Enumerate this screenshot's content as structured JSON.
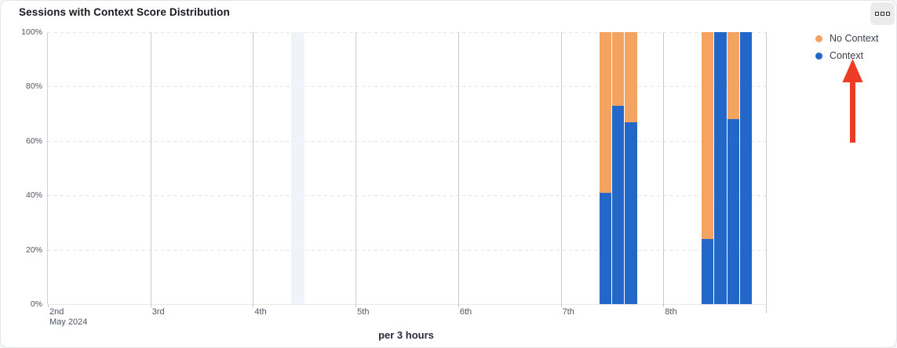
{
  "card": {
    "title": "Sessions with Context Score Distribution"
  },
  "menu": {
    "icon": "more-options-squares"
  },
  "legend": {
    "position": "top-right",
    "items": [
      {
        "label": "No Context",
        "color": "#F5A360"
      },
      {
        "label": "Context",
        "color": "#2367C8"
      }
    ]
  },
  "annotation": {
    "type": "red-up-arrow",
    "color": "#EE3B26",
    "points_at": "Context legend item"
  },
  "chart_data": {
    "type": "bar",
    "stacked": true,
    "unit": "percent",
    "title": "Sessions with Context Score Distribution",
    "xlabel": "per 3 hours",
    "ylabel": "",
    "ylim": [
      0,
      100
    ],
    "grid": {
      "horizontal": "dashed",
      "vertical": "solid-per-day"
    },
    "y_tick_labels": [
      "100%",
      "80%",
      "60%",
      "40%",
      "20%",
      "0%"
    ],
    "x_tick_labels": [
      {
        "label": "2nd",
        "sub": "May 2024"
      },
      {
        "label": "3rd"
      },
      {
        "label": "4th"
      },
      {
        "label": "5th"
      },
      {
        "label": "6th"
      },
      {
        "label": "7th"
      },
      {
        "label": "8th"
      }
    ],
    "series": [
      {
        "name": "Context",
        "color": "#2367C8",
        "role": "bottom"
      },
      {
        "name": "No Context",
        "color": "#F5A360",
        "role": "top"
      }
    ],
    "bar_width_pct": 1.69,
    "bars": [
      {
        "day": "7th May",
        "index": 1,
        "context": 41,
        "no_context": 59,
        "pos_pct": 76.8
      },
      {
        "day": "7th May",
        "index": 2,
        "context": 73,
        "no_context": 27,
        "pos_pct": 78.55
      },
      {
        "day": "7th May",
        "index": 3,
        "context": 67,
        "no_context": 33,
        "pos_pct": 80.35
      },
      {
        "day": "8th May",
        "index": 1,
        "context": 24,
        "no_context": 76,
        "pos_pct": 91.0
      },
      {
        "day": "8th May",
        "index": 2,
        "context": 100,
        "no_context": 0,
        "pos_pct": 92.8
      },
      {
        "day": "8th May",
        "index": 3,
        "context": 68,
        "no_context": 32,
        "pos_pct": 94.6
      },
      {
        "day": "8th May",
        "index": 4,
        "context": 100,
        "no_context": 0,
        "pos_pct": 96.35
      }
    ],
    "highlight_band": {
      "pos_pct": 33.9,
      "width_pct": 1.86,
      "color": "#F0F4F8"
    }
  }
}
